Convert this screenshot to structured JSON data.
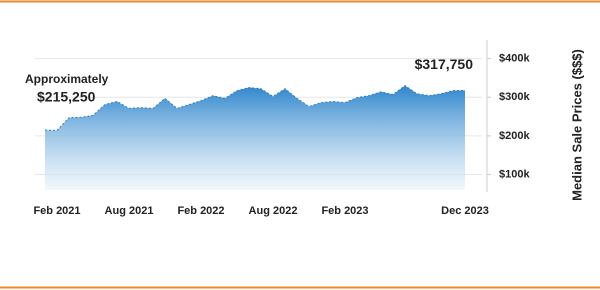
{
  "chart_data": {
    "type": "area",
    "y_label": "Median Sale Prices ($$$)",
    "categories": [
      null,
      "Feb 2021",
      null,
      null,
      null,
      null,
      null,
      "Aug 2021",
      null,
      null,
      null,
      null,
      null,
      "Feb 2022",
      null,
      null,
      null,
      null,
      null,
      "Aug 2022",
      null,
      null,
      null,
      null,
      null,
      "Feb 2023",
      null,
      null,
      null,
      null,
      null,
      null,
      null,
      null,
      null,
      "Dec 2023"
    ],
    "values": [
      215250,
      214000,
      247000,
      248000,
      253000,
      281000,
      289000,
      271000,
      273000,
      271000,
      297000,
      271000,
      281000,
      291000,
      304000,
      297000,
      317000,
      325000,
      322000,
      302000,
      322000,
      297000,
      276000,
      286000,
      289000,
      286000,
      299000,
      304000,
      314000,
      307000,
      330000,
      309000,
      304000,
      309000,
      317000,
      317750
    ],
    "value_labels": [
      "$215,250",
      null,
      null,
      null,
      null,
      null,
      null,
      null,
      null,
      null,
      null,
      null,
      null,
      null,
      null,
      null,
      null,
      null,
      null,
      null,
      null,
      null,
      null,
      null,
      null,
      null,
      null,
      null,
      null,
      null,
      null,
      null,
      null,
      null,
      null,
      "$317,750"
    ],
    "annotation": "Approximately",
    "color": "#2e7fc4",
    "ylim": [
      65000,
      430000
    ],
    "yticks": [
      {
        "value": 100000,
        "label": "$100k"
      },
      {
        "value": 200000,
        "label": "$200k"
      },
      {
        "value": 300000,
        "label": "$300k"
      },
      {
        "value": 400000,
        "label": "$400k"
      }
    ],
    "grid": true
  }
}
